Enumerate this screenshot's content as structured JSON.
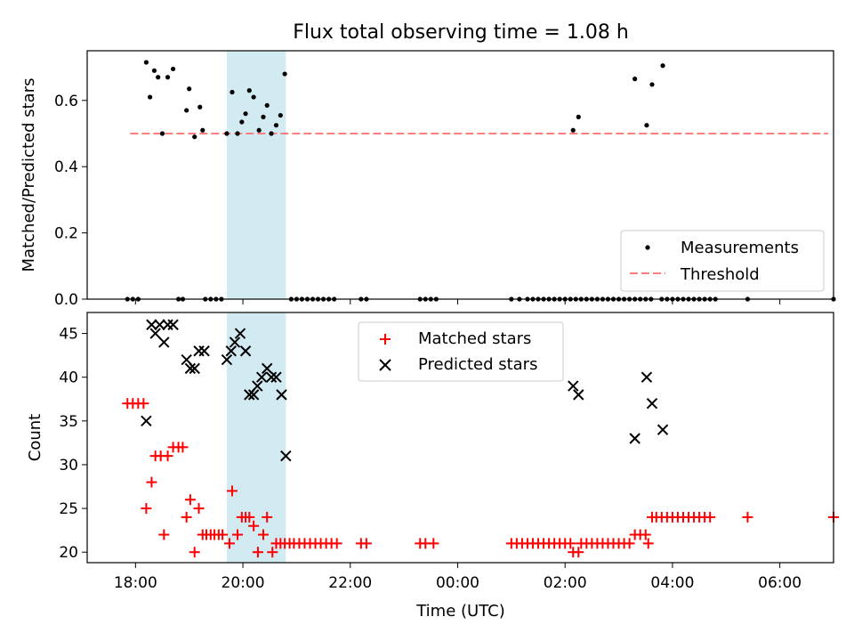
{
  "title": "Flux total observing time = 1.08 h",
  "colors": {
    "measurement": "#000000",
    "threshold": "#ff7f7f",
    "matched": "#ff0000",
    "predicted": "#000000",
    "highlight": "#add8e6"
  },
  "chart_data": [
    {
      "type": "scatter",
      "panel": "top",
      "ylabel": "Matched/Predicted stars",
      "xlim_hours": [
        17.1,
        31.0
      ],
      "ylim": [
        0.0,
        0.75
      ],
      "yticks": [
        0.0,
        0.2,
        0.4,
        0.6
      ],
      "ytick_labels": [
        "0.0",
        "0.2",
        "0.4",
        "0.6"
      ],
      "highlight_span_hours": [
        19.7,
        20.8
      ],
      "legend": {
        "placement": "lower right",
        "entries": [
          "Measurements",
          "Threshold"
        ]
      },
      "threshold": {
        "name": "Threshold",
        "value": 0.5,
        "x_range_hours": [
          17.9,
          30.9
        ]
      },
      "series": [
        {
          "name": "Measurements",
          "points": [
            [
              18.2,
              0.715
            ],
            [
              18.27,
              0.61
            ],
            [
              18.35,
              0.69
            ],
            [
              18.42,
              0.67
            ],
            [
              18.5,
              0.5
            ],
            [
              18.6,
              0.67
            ],
            [
              18.7,
              0.695
            ],
            [
              18.95,
              0.57
            ],
            [
              19.0,
              0.635
            ],
            [
              19.1,
              0.49
            ],
            [
              19.2,
              0.58
            ],
            [
              19.25,
              0.51
            ],
            [
              19.7,
              0.5
            ],
            [
              19.8,
              0.625
            ],
            [
              19.9,
              0.5
            ],
            [
              19.98,
              0.535
            ],
            [
              20.05,
              0.56
            ],
            [
              20.12,
              0.63
            ],
            [
              20.2,
              0.61
            ],
            [
              20.3,
              0.51
            ],
            [
              20.38,
              0.55
            ],
            [
              20.45,
              0.585
            ],
            [
              20.53,
              0.5
            ],
            [
              20.62,
              0.525
            ],
            [
              20.7,
              0.555
            ],
            [
              20.78,
              0.68
            ],
            [
              26.15,
              0.51
            ],
            [
              26.25,
              0.55
            ],
            [
              27.3,
              0.665
            ],
            [
              27.52,
              0.525
            ],
            [
              27.62,
              0.648
            ],
            [
              27.82,
              0.705
            ],
            [
              17.85,
              0.0
            ],
            [
              17.95,
              0.0
            ],
            [
              18.05,
              0.0
            ],
            [
              18.8,
              0.0
            ],
            [
              18.88,
              0.0
            ],
            [
              19.3,
              0.0
            ],
            [
              19.4,
              0.0
            ],
            [
              19.5,
              0.0
            ],
            [
              19.6,
              0.0
            ],
            [
              20.9,
              0.0
            ],
            [
              21.0,
              0.0
            ],
            [
              21.1,
              0.0
            ],
            [
              21.2,
              0.0
            ],
            [
              21.3,
              0.0
            ],
            [
              21.4,
              0.0
            ],
            [
              21.5,
              0.0
            ],
            [
              21.6,
              0.0
            ],
            [
              21.7,
              0.0
            ],
            [
              22.2,
              0.0
            ],
            [
              22.3,
              0.0
            ],
            [
              23.3,
              0.0
            ],
            [
              23.4,
              0.0
            ],
            [
              23.5,
              0.0
            ],
            [
              23.6,
              0.0
            ],
            [
              25.0,
              0.0
            ],
            [
              25.15,
              0.0
            ],
            [
              25.3,
              0.0
            ],
            [
              25.4,
              0.0
            ],
            [
              25.5,
              0.0
            ],
            [
              25.6,
              0.0
            ],
            [
              25.7,
              0.0
            ],
            [
              25.8,
              0.0
            ],
            [
              25.9,
              0.0
            ],
            [
              26.0,
              0.0
            ],
            [
              26.1,
              0.0
            ],
            [
              26.2,
              0.0
            ],
            [
              26.3,
              0.0
            ],
            [
              26.4,
              0.0
            ],
            [
              26.5,
              0.0
            ],
            [
              26.6,
              0.0
            ],
            [
              26.7,
              0.0
            ],
            [
              26.8,
              0.0
            ],
            [
              26.9,
              0.0
            ],
            [
              27.0,
              0.0
            ],
            [
              27.1,
              0.0
            ],
            [
              27.2,
              0.0
            ],
            [
              27.3,
              0.0
            ],
            [
              27.4,
              0.0
            ],
            [
              27.5,
              0.0
            ],
            [
              27.6,
              0.0
            ],
            [
              27.8,
              0.0
            ],
            [
              27.9,
              0.0
            ],
            [
              28.0,
              0.0
            ],
            [
              28.1,
              0.0
            ],
            [
              28.2,
              0.0
            ],
            [
              28.3,
              0.0
            ],
            [
              28.4,
              0.0
            ],
            [
              28.5,
              0.0
            ],
            [
              28.6,
              0.0
            ],
            [
              28.7,
              0.0
            ],
            [
              28.8,
              0.0
            ],
            [
              29.4,
              0.0
            ],
            [
              31.0,
              0.0
            ]
          ]
        }
      ]
    },
    {
      "type": "scatter",
      "panel": "bottom",
      "xlabel": "Time (UTC)",
      "ylabel": "Count",
      "xlim_hours": [
        17.1,
        31.0
      ],
      "ylim": [
        18.8,
        47.4
      ],
      "xticks_hours": [
        18,
        20,
        22,
        24,
        26,
        28,
        30
      ],
      "xtick_labels": [
        "18:00",
        "20:00",
        "22:00",
        "00:00",
        "02:00",
        "04:00",
        "06:00"
      ],
      "yticks": [
        20,
        25,
        30,
        35,
        40,
        45
      ],
      "ytick_labels": [
        "20",
        "25",
        "30",
        "35",
        "40",
        "45"
      ],
      "highlight_span_hours": [
        19.7,
        20.8
      ],
      "legend": {
        "placement": "upper center",
        "entries": [
          "Matched stars",
          "Predicted stars"
        ]
      },
      "series": [
        {
          "name": "Matched stars",
          "marker": "plus",
          "points": [
            [
              17.85,
              37
            ],
            [
              17.95,
              37
            ],
            [
              18.05,
              37
            ],
            [
              18.15,
              37
            ],
            [
              18.2,
              25
            ],
            [
              18.3,
              28
            ],
            [
              18.37,
              31
            ],
            [
              18.47,
              31
            ],
            [
              18.53,
              22
            ],
            [
              18.6,
              31
            ],
            [
              18.7,
              32
            ],
            [
              18.8,
              32
            ],
            [
              18.88,
              32
            ],
            [
              18.95,
              24
            ],
            [
              19.02,
              26
            ],
            [
              19.1,
              20
            ],
            [
              19.18,
              25
            ],
            [
              19.25,
              22
            ],
            [
              19.32,
              22
            ],
            [
              19.4,
              22
            ],
            [
              19.47,
              22
            ],
            [
              19.55,
              22
            ],
            [
              19.62,
              22
            ],
            [
              19.75,
              21
            ],
            [
              19.8,
              27
            ],
            [
              19.9,
              22
            ],
            [
              19.98,
              24
            ],
            [
              20.05,
              24
            ],
            [
              20.12,
              24
            ],
            [
              20.2,
              23
            ],
            [
              20.28,
              20
            ],
            [
              20.38,
              22
            ],
            [
              20.45,
              24
            ],
            [
              20.55,
              20
            ],
            [
              20.62,
              21
            ],
            [
              20.7,
              21
            ],
            [
              20.78,
              21
            ],
            [
              20.87,
              21
            ],
            [
              20.95,
              21
            ],
            [
              21.05,
              21
            ],
            [
              21.15,
              21
            ],
            [
              21.25,
              21
            ],
            [
              21.35,
              21
            ],
            [
              21.45,
              21
            ],
            [
              21.55,
              21
            ],
            [
              21.65,
              21
            ],
            [
              21.75,
              21
            ],
            [
              22.2,
              21
            ],
            [
              22.3,
              21
            ],
            [
              23.3,
              21
            ],
            [
              23.4,
              21
            ],
            [
              23.55,
              21
            ],
            [
              25.0,
              21
            ],
            [
              25.1,
              21
            ],
            [
              25.2,
              21
            ],
            [
              25.3,
              21
            ],
            [
              25.4,
              21
            ],
            [
              25.5,
              21
            ],
            [
              25.6,
              21
            ],
            [
              25.7,
              21
            ],
            [
              25.8,
              21
            ],
            [
              25.9,
              21
            ],
            [
              26.0,
              21
            ],
            [
              26.1,
              21
            ],
            [
              26.15,
              20
            ],
            [
              26.25,
              20
            ],
            [
              26.3,
              21
            ],
            [
              26.4,
              21
            ],
            [
              26.5,
              21
            ],
            [
              26.6,
              21
            ],
            [
              26.7,
              21
            ],
            [
              26.8,
              21
            ],
            [
              26.9,
              21
            ],
            [
              27.0,
              21
            ],
            [
              27.1,
              21
            ],
            [
              27.2,
              21
            ],
            [
              27.3,
              22
            ],
            [
              27.4,
              22
            ],
            [
              27.5,
              22
            ],
            [
              27.55,
              21
            ],
            [
              27.62,
              24
            ],
            [
              27.7,
              24
            ],
            [
              27.8,
              24
            ],
            [
              27.9,
              24
            ],
            [
              28.0,
              24
            ],
            [
              28.1,
              24
            ],
            [
              28.2,
              24
            ],
            [
              28.3,
              24
            ],
            [
              28.4,
              24
            ],
            [
              28.5,
              24
            ],
            [
              28.6,
              24
            ],
            [
              28.7,
              24
            ],
            [
              29.4,
              24
            ],
            [
              31.0,
              24
            ]
          ]
        },
        {
          "name": "Predicted stars",
          "marker": "x",
          "points": [
            [
              18.2,
              35
            ],
            [
              18.3,
              46
            ],
            [
              18.37,
              45
            ],
            [
              18.45,
              46
            ],
            [
              18.53,
              44
            ],
            [
              18.6,
              46
            ],
            [
              18.7,
              46
            ],
            [
              18.95,
              42
            ],
            [
              19.02,
              41
            ],
            [
              19.1,
              41
            ],
            [
              19.18,
              43
            ],
            [
              19.28,
              43
            ],
            [
              19.7,
              42
            ],
            [
              19.78,
              43
            ],
            [
              19.85,
              44
            ],
            [
              19.95,
              45
            ],
            [
              20.05,
              43
            ],
            [
              20.12,
              38
            ],
            [
              20.2,
              38
            ],
            [
              20.27,
              39
            ],
            [
              20.35,
              40
            ],
            [
              20.45,
              41
            ],
            [
              20.53,
              40
            ],
            [
              20.62,
              40
            ],
            [
              20.72,
              38
            ],
            [
              20.8,
              31
            ],
            [
              26.15,
              39
            ],
            [
              26.25,
              38
            ],
            [
              27.3,
              33
            ],
            [
              27.52,
              40
            ],
            [
              27.62,
              37
            ],
            [
              27.82,
              34
            ]
          ]
        }
      ]
    }
  ]
}
